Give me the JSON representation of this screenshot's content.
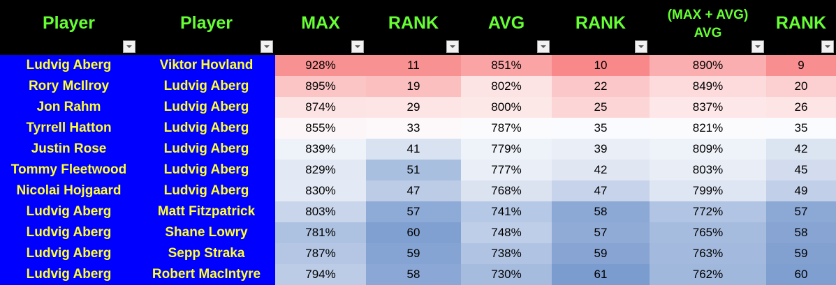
{
  "header": {
    "columns": [
      {
        "label": "Player",
        "line2": ""
      },
      {
        "label": "Player",
        "line2": ""
      },
      {
        "label": "MAX",
        "line2": ""
      },
      {
        "label": "RANK",
        "line2": ""
      },
      {
        "label": "AVG",
        "line2": ""
      },
      {
        "label": "RANK",
        "line2": ""
      },
      {
        "label": "(MAX + AVG)",
        "line2": "AVG"
      },
      {
        "label": "RANK",
        "line2": ""
      }
    ]
  },
  "rows": [
    {
      "player1": "Ludvig Aberg",
      "player2": "Viktor Hovland",
      "max": "928%",
      "max_rank": "11",
      "avg": "851%",
      "avg_rank": "10",
      "combo": "890%",
      "combo_rank": "9",
      "colors": [
        "#f89192",
        "#f89192",
        "#faa4a5",
        "#f8888a",
        "#fbaeaf",
        "#f88e8f"
      ]
    },
    {
      "player1": "Rory McIlroy",
      "player2": "Ludvig Aberg",
      "max": "895%",
      "max_rank": "19",
      "avg": "802%",
      "avg_rank": "22",
      "combo": "849%",
      "combo_rank": "20",
      "colors": [
        "#fbc5c6",
        "#fbbfbf",
        "#fde4e4",
        "#fcc7c8",
        "#fddadb",
        "#fccfd0"
      ]
    },
    {
      "player1": "Jon Rahm",
      "player2": "Ludvig Aberg",
      "max": "874%",
      "max_rank": "29",
      "avg": "800%",
      "avg_rank": "25",
      "combo": "837%",
      "combo_rank": "26",
      "colors": [
        "#fde4e4",
        "#fde5e6",
        "#fde8e8",
        "#fcd6d7",
        "#fde7e8",
        "#fde4e5"
      ]
    },
    {
      "player1": "Tyrrell Hatton",
      "player2": "Ludvig Aberg",
      "max": "855%",
      "max_rank": "33",
      "avg": "787%",
      "avg_rank": "35",
      "combo": "821%",
      "combo_rank": "35",
      "colors": [
        "#fdf6f8",
        "#fdf9fb",
        "#fbfbfd",
        "#fafbfe",
        "#fbfbfe",
        "#fafbfe"
      ]
    },
    {
      "player1": "Justin Rose",
      "player2": "Ludvig Aberg",
      "max": "839%",
      "max_rank": "41",
      "avg": "779%",
      "avg_rank": "39",
      "combo": "809%",
      "combo_rank": "42",
      "colors": [
        "#eef2f9",
        "#d9e2f0",
        "#eef2f9",
        "#e9eef7",
        "#eef2f9",
        "#dbe4f1"
      ]
    },
    {
      "player1": "Tommy Fleetwood",
      "player2": "Ludvig Aberg",
      "max": "829%",
      "max_rank": "51",
      "avg": "777%",
      "avg_rank": "42",
      "combo": "803%",
      "combo_rank": "45",
      "colors": [
        "#e3e9f4",
        "#a9bfe0",
        "#e9eef7",
        "#e0e7f3",
        "#e8edf6",
        "#d2dcee"
      ]
    },
    {
      "player1": "Nicolai Hojgaard",
      "player2": "Ludvig Aberg",
      "max": "830%",
      "max_rank": "47",
      "avg": "768%",
      "avg_rank": "47",
      "combo": "799%",
      "combo_rank": "49",
      "colors": [
        "#e4eaf5",
        "#bccce6",
        "#dbe3f1",
        "#c6d3ea",
        "#dfe6f3",
        "#c1cfe8"
      ]
    },
    {
      "player1": "Ludvig Aberg",
      "player2": "Matt Fitzpatrick",
      "max": "803%",
      "max_rank": "57",
      "avg": "741%",
      "avg_rank": "58",
      "combo": "772%",
      "combo_rank": "57",
      "colors": [
        "#c8d5eb",
        "#8eaad6",
        "#b5c8e5",
        "#8ca8d5",
        "#b1c4e3",
        "#8ca8d5"
      ]
    },
    {
      "player1": "Ludvig Aberg",
      "player2": "Shane Lowry",
      "max": "781%",
      "max_rank": "60",
      "avg": "748%",
      "avg_rank": "57",
      "combo": "765%",
      "combo_rank": "58",
      "colors": [
        "#adc1e1",
        "#80a0d1",
        "#bfcee8",
        "#90abd6",
        "#a6bcdf",
        "#87a4d3"
      ]
    },
    {
      "player1": "Ludvig Aberg",
      "player2": "Sepp Straka",
      "max": "787%",
      "max_rank": "59",
      "avg": "738%",
      "avg_rank": "59",
      "combo": "763%",
      "combo_rank": "59",
      "colors": [
        "#b4c6e4",
        "#85a4d3",
        "#b0c3e2",
        "#87a4d3",
        "#a3b9dd",
        "#82a1d1"
      ]
    },
    {
      "player1": "Ludvig Aberg",
      "player2": "Robert MacIntyre",
      "max": "794%",
      "max_rank": "58",
      "avg": "730%",
      "avg_rank": "61",
      "combo": "762%",
      "combo_rank": "60",
      "colors": [
        "#bccce6",
        "#8aa7d5",
        "#a6bcdf",
        "#7a9ccf",
        "#a1b8dd",
        "#7e9fd0"
      ]
    }
  ]
}
